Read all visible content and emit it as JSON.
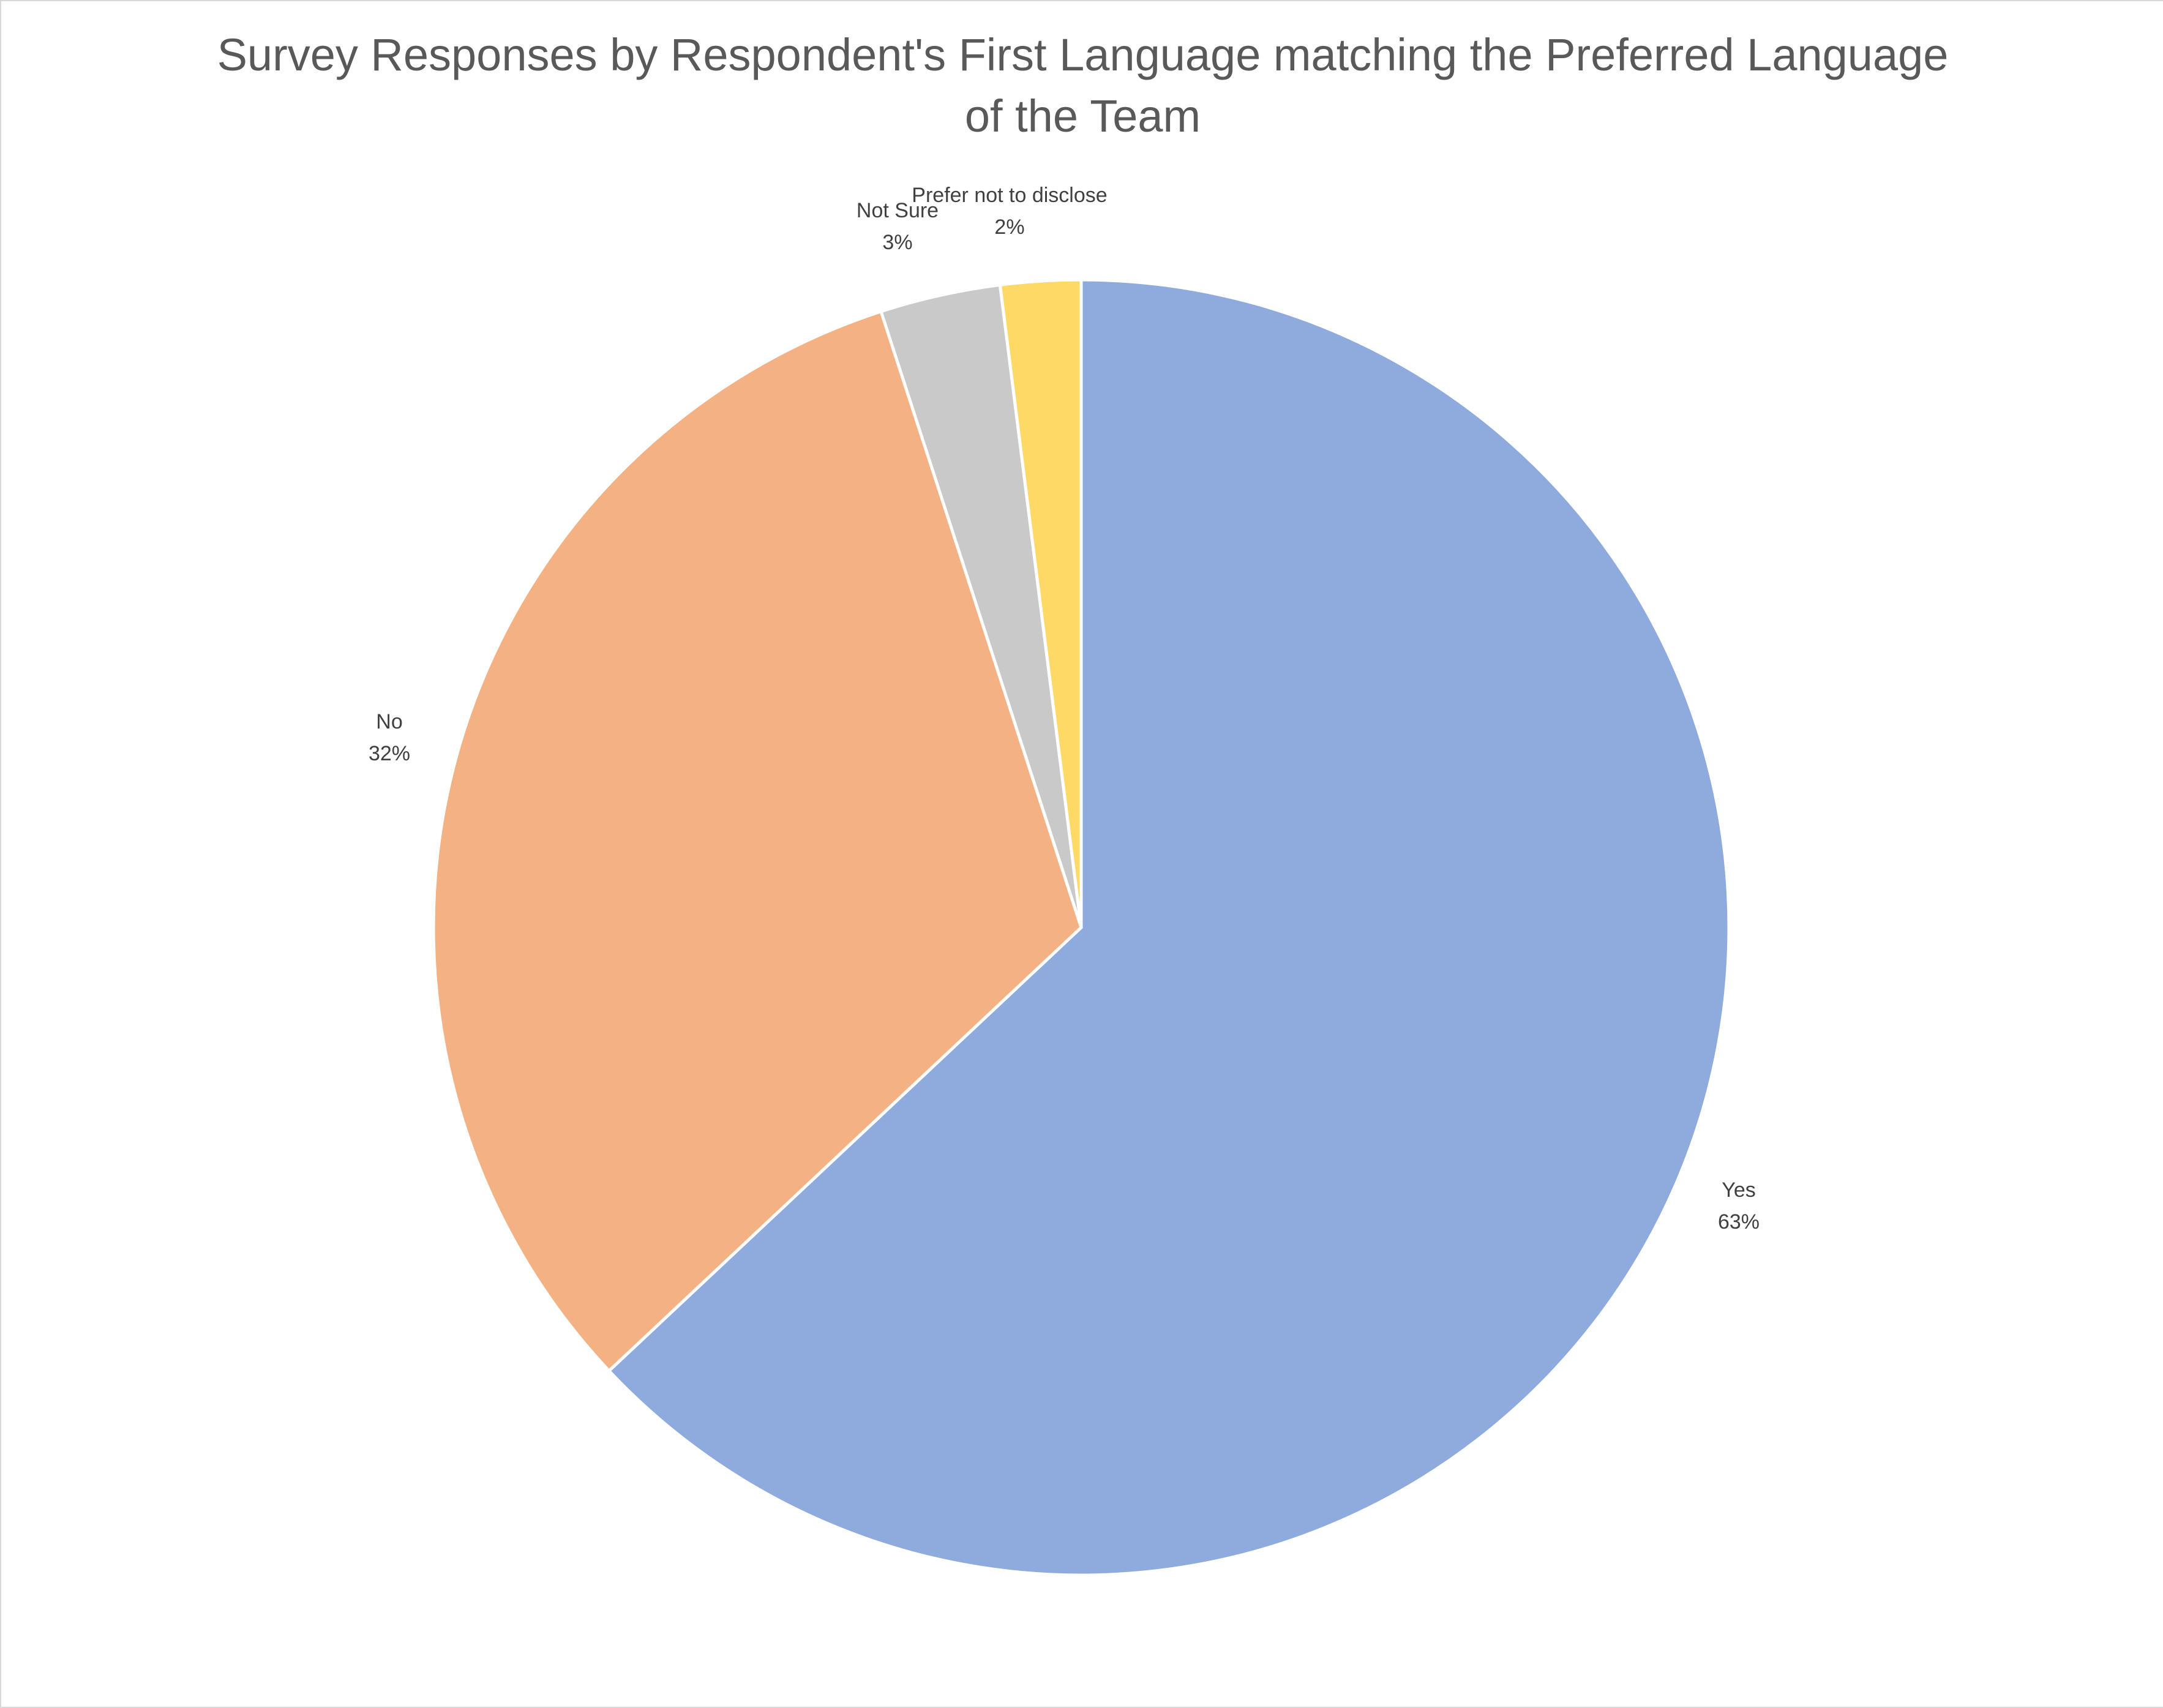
{
  "chart_data": {
    "type": "pie",
    "title_lines": [
      "Survey Responses by Respondent's First Language matching the Preferred Language",
      "of the Team"
    ],
    "categories": [
      "Yes",
      "No",
      "Not Sure",
      "Prefer not to disclose"
    ],
    "values": [
      63,
      32,
      3,
      2
    ],
    "value_labels": [
      "63%",
      "32%",
      "3%",
      "2%"
    ],
    "colors": [
      "#8faadc",
      "#f4b183",
      "#c9c9c9",
      "#ffd966"
    ],
    "legend": "none"
  }
}
